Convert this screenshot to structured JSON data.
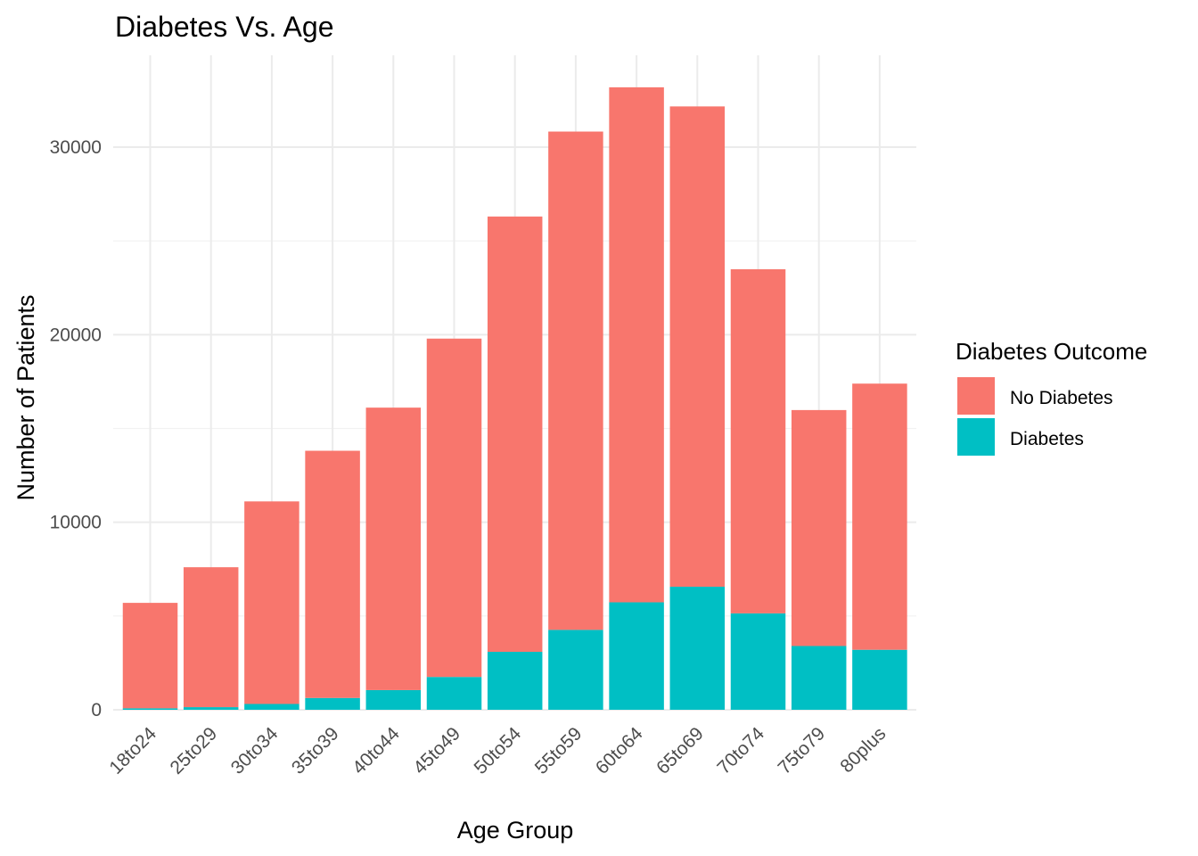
{
  "chart_data": {
    "type": "bar",
    "stacked": true,
    "title": "Diabetes Vs. Age",
    "xlabel": "Age Group",
    "ylabel": "Number of Patients",
    "categories": [
      "18to24",
      "25to29",
      "30to34",
      "35to39",
      "40to44",
      "45to49",
      "50to54",
      "55to59",
      "60to64",
      "65to69",
      "70to74",
      "75to79",
      "80plus"
    ],
    "series": [
      {
        "name": "Diabetes",
        "color": "#00BFC4",
        "values": [
          80,
          140,
          310,
          630,
          1050,
          1750,
          3090,
          4260,
          5730,
          6560,
          5140,
          3400,
          3200
        ]
      },
      {
        "name": "No Diabetes",
        "color": "#F8766D",
        "values": [
          5620,
          7460,
          10800,
          13180,
          15060,
          18040,
          23210,
          26570,
          27460,
          25610,
          18350,
          12580,
          14190
        ]
      }
    ],
    "ylim": [
      0,
      34000
    ],
    "yticks": [
      0,
      10000,
      20000,
      30000
    ],
    "grid": true,
    "legend": {
      "title": "Diabetes Outcome",
      "position": "right",
      "entries": [
        "No Diabetes",
        "Diabetes"
      ]
    }
  }
}
